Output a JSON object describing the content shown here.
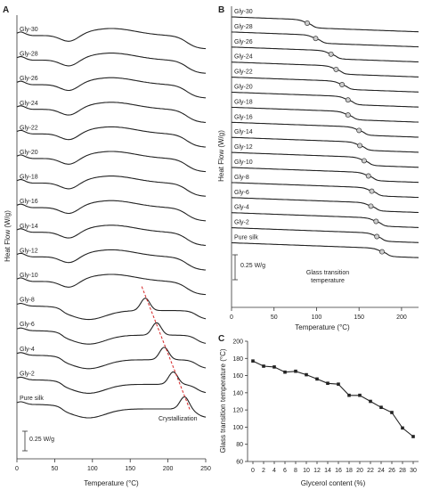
{
  "chart_data": [
    {
      "panel": "A",
      "type": "line",
      "xlabel": "Temperature (°C)",
      "ylabel": "Heat Flow (W/g)",
      "xlim": [
        0,
        250
      ],
      "xticks": [
        0,
        50,
        100,
        150,
        200,
        250
      ],
      "scale_bar_label": "0.25 W/g",
      "annotation": "Crystallization",
      "series": [
        {
          "name": "Gly-30",
          "features": {
            "peak_endotherm_center": 125
          }
        },
        {
          "name": "Gly-28",
          "features": {
            "peak_endotherm_center": 125
          }
        },
        {
          "name": "Gly-26",
          "features": {
            "peak_endotherm_center": 125
          }
        },
        {
          "name": "Gly-24",
          "features": {
            "peak_endotherm_center": 125
          }
        },
        {
          "name": "Gly-22",
          "features": {
            "peak_endotherm_center": 125
          }
        },
        {
          "name": "Gly-20",
          "features": {
            "peak_endotherm_center": 125
          }
        },
        {
          "name": "Gly-18",
          "features": {
            "peak_endotherm_center": 125
          }
        },
        {
          "name": "Gly-16",
          "features": {
            "peak_endotherm_center": 125
          }
        },
        {
          "name": "Gly-14",
          "features": {
            "peak_endotherm_center": 125
          }
        },
        {
          "name": "Gly-12",
          "features": {
            "peak_endotherm_center": 125
          }
        },
        {
          "name": "Gly-10",
          "features": {
            "peak_endotherm_center": 125
          }
        },
        {
          "name": "Gly-8",
          "features": {
            "crystallization_peak": 170
          }
        },
        {
          "name": "Gly-6",
          "features": {
            "crystallization_peak": 185
          }
        },
        {
          "name": "Gly-4",
          "features": {
            "crystallization_peak": 195
          }
        },
        {
          "name": "Gly-2",
          "features": {
            "crystallization_peak": 207
          }
        },
        {
          "name": "Pure silk",
          "features": {
            "crystallization_peak": 222
          }
        }
      ]
    },
    {
      "panel": "B",
      "type": "line",
      "xlabel": "Temperature (°C)",
      "ylabel": "Heat Flow (W/g)",
      "xlim": [
        0,
        220
      ],
      "xticks": [
        0,
        50,
        100,
        150,
        200
      ],
      "scale_bar_label": "0.25 W/g",
      "annotation_line1": "Glass transition",
      "annotation_line2": "temperature",
      "series": [
        {
          "name": "Gly-30",
          "tg": 89
        },
        {
          "name": "Gly-28",
          "tg": 99
        },
        {
          "name": "Gly-26",
          "tg": 117
        },
        {
          "name": "Gly-24",
          "tg": 123
        },
        {
          "name": "Gly-22",
          "tg": 130
        },
        {
          "name": "Gly-20",
          "tg": 137
        },
        {
          "name": "Gly-18",
          "tg": 137
        },
        {
          "name": "Gly-16",
          "tg": 150
        },
        {
          "name": "Gly-14",
          "tg": 151
        },
        {
          "name": "Gly-12",
          "tg": 156
        },
        {
          "name": "Gly-10",
          "tg": 161
        },
        {
          "name": "Gly-8",
          "tg": 165
        },
        {
          "name": "Gly-6",
          "tg": 164
        },
        {
          "name": "Gly-4",
          "tg": 170
        },
        {
          "name": "Gly-2",
          "tg": 171
        },
        {
          "name": "Pure silk",
          "tg": 177
        }
      ]
    },
    {
      "panel": "C",
      "type": "line",
      "xlabel": "Glycerol content (%)",
      "ylabel": "Glass transition temperature (°C)",
      "xlim": [
        -1,
        31
      ],
      "ylim": [
        60,
        200
      ],
      "xticks": [
        0,
        2,
        4,
        6,
        8,
        10,
        12,
        14,
        16,
        18,
        20,
        22,
        24,
        26,
        28,
        30
      ],
      "yticks": [
        60,
        80,
        100,
        120,
        140,
        160,
        180,
        200
      ],
      "x": [
        0,
        2,
        4,
        6,
        8,
        10,
        12,
        14,
        16,
        18,
        20,
        22,
        24,
        26,
        28,
        30
      ],
      "y": [
        177,
        171,
        170,
        164,
        165,
        161,
        156,
        151,
        150,
        137,
        137,
        130,
        123,
        117,
        99,
        89
      ]
    }
  ]
}
